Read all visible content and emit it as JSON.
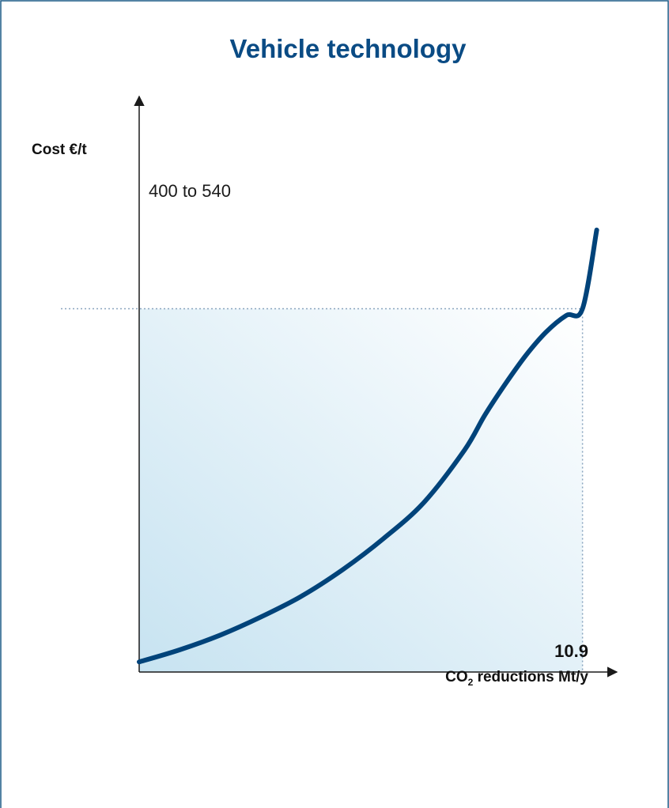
{
  "chart_data": {
    "type": "line",
    "title": "Vehicle technology",
    "ylabel": "Cost €/t",
    "xlabel_main": "CO",
    "xlabel_subscript": "2",
    "xlabel_rest": " reductions Mt/y",
    "y_marker_label": "400 to 540",
    "x_marker_label": "10.9",
    "x_marker_value": 10.9,
    "y_marker_value": 540,
    "xlim": [
      0,
      11.25
    ],
    "ylim": [
      0,
      740
    ],
    "series": [
      {
        "x": [
          0,
          1,
          2,
          3,
          4,
          5,
          6,
          7,
          8,
          8.5,
          9,
          9.5,
          10,
          10.5,
          10.9,
          11.25
        ],
        "y": [
          15,
          33,
          55,
          82,
          113,
          152,
          198,
          252,
          330,
          382,
          428,
          470,
          505,
          530,
          540,
          657
        ]
      }
    ],
    "colors": {
      "curve": "#00437a",
      "axis": "#1a1a1a",
      "guide": "#8aa5bf",
      "frame": "#1a5a86",
      "fill_dark": "#c7e3f1",
      "fill_light": "#ffffff"
    }
  }
}
